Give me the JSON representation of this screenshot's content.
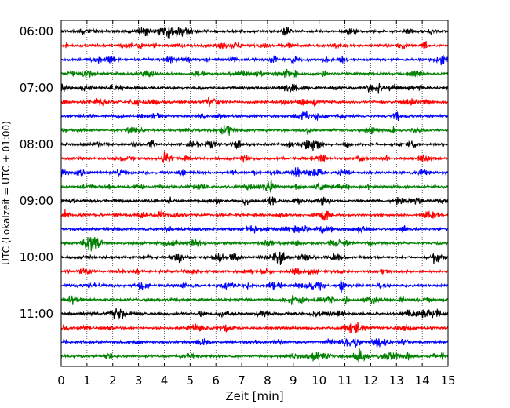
{
  "chart_data": {
    "type": "line",
    "title": "",
    "xlabel": "Zeit  [min]",
    "ylabel": "UTC (Lokalzeit = UTC + 01:00)",
    "xlim": [
      0,
      15
    ],
    "x_ticks": [
      "0",
      "1",
      "2",
      "3",
      "4",
      "5",
      "6",
      "7",
      "8",
      "9",
      "10",
      "11",
      "12",
      "13",
      "14",
      "15"
    ],
    "y_ticks": [
      {
        "label": "06:00",
        "row": 0
      },
      {
        "label": "07:00",
        "row": 4
      },
      {
        "label": "08:00",
        "row": 8
      },
      {
        "label": "09:00",
        "row": 12
      },
      {
        "label": "10:00",
        "row": 16
      },
      {
        "label": "11:00",
        "row": 20
      }
    ],
    "grid": "vertical dotted at each minute",
    "trace_interval_minutes": 15,
    "trace_count": 24,
    "trace_colors": [
      "#000000",
      "#ff0000",
      "#0000ff",
      "#008000"
    ],
    "series": [
      {
        "start": "06:00",
        "color": "#000000"
      },
      {
        "start": "06:15",
        "color": "#ff0000"
      },
      {
        "start": "06:30",
        "color": "#0000ff"
      },
      {
        "start": "06:45",
        "color": "#008000"
      },
      {
        "start": "07:00",
        "color": "#000000"
      },
      {
        "start": "07:15",
        "color": "#ff0000"
      },
      {
        "start": "07:30",
        "color": "#0000ff"
      },
      {
        "start": "07:45",
        "color": "#008000"
      },
      {
        "start": "08:00",
        "color": "#000000"
      },
      {
        "start": "08:15",
        "color": "#ff0000"
      },
      {
        "start": "08:30",
        "color": "#0000ff"
      },
      {
        "start": "08:45",
        "color": "#008000"
      },
      {
        "start": "09:00",
        "color": "#000000"
      },
      {
        "start": "09:15",
        "color": "#ff0000"
      },
      {
        "start": "09:30",
        "color": "#0000ff"
      },
      {
        "start": "09:45",
        "color": "#008000"
      },
      {
        "start": "10:00",
        "color": "#000000"
      },
      {
        "start": "10:15",
        "color": "#ff0000"
      },
      {
        "start": "10:30",
        "color": "#0000ff"
      },
      {
        "start": "10:45",
        "color": "#008000"
      },
      {
        "start": "11:00",
        "color": "#000000"
      },
      {
        "start": "11:15",
        "color": "#ff0000"
      },
      {
        "start": "11:30",
        "color": "#0000ff"
      },
      {
        "start": "11:45",
        "color": "#008000"
      }
    ]
  }
}
